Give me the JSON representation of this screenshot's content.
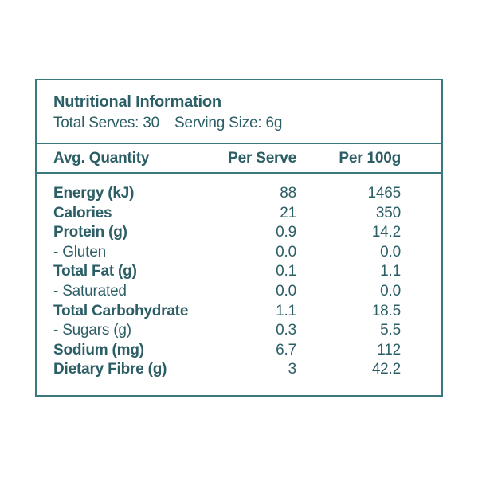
{
  "label": {
    "title": "Nutritional Information",
    "serves_text": "Total Serves: 30",
    "size_text": "Serving Size: 6g",
    "columns": {
      "quantity": "Avg. Quantity",
      "per_serve": "Per Serve",
      "per_100g": "Per 100g"
    },
    "rows": [
      {
        "label": "Energy (kJ)",
        "per_serve": "88",
        "per_100g": "1465"
      },
      {
        "label": "Calories",
        "per_serve": "21",
        "per_100g": "350"
      },
      {
        "label": "Protein (g)",
        "per_serve": "0.9",
        "per_100g": "14.2"
      },
      {
        "label": "- Gluten",
        "per_serve": "0.0",
        "per_100g": "0.0"
      },
      {
        "label": "Total Fat (g)",
        "per_serve": "0.1",
        "per_100g": "1.1"
      },
      {
        "label": "- Saturated",
        "per_serve": "0.0",
        "per_100g": "0.0"
      },
      {
        "label": "Total Carbohydrate",
        "per_serve": "1.1",
        "per_100g": "18.5"
      },
      {
        "label": "- Sugars (g)",
        "per_serve": "0.3",
        "per_100g": "5.5"
      },
      {
        "label": "Sodium (mg)",
        "per_serve": "6.7",
        "per_100g": "112"
      },
      {
        "label": "Dietary Fibre (g)",
        "per_serve": "3",
        "per_100g": "42.2"
      }
    ],
    "colors": {
      "text": "#2c5e66",
      "border": "#3a787c",
      "background": "#ffffff"
    }
  }
}
